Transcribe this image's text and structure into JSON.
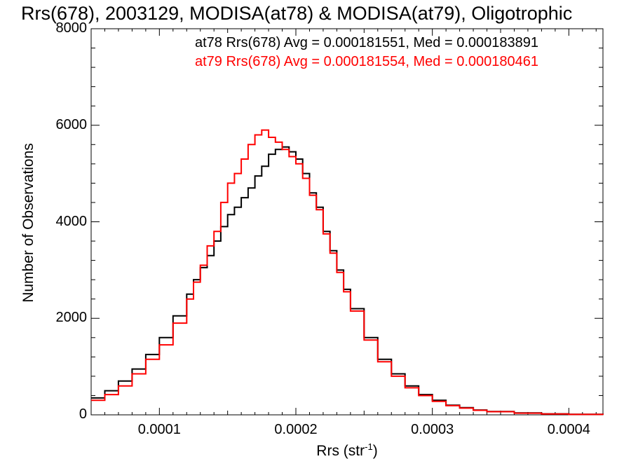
{
  "chart_data": {
    "type": "line",
    "title": "Rrs(678), 2003129, MODISA(at78) & MODISA(at79), Oligotrophic",
    "xlabel": "Rrs (str",
    "xlabel_sup": "-1",
    "xlabel_close": ")",
    "ylabel": "Number of Observations",
    "xlim": [
      5e-05,
      0.000425
    ],
    "ylim": [
      0,
      8000
    ],
    "x_ticks": [
      "0.0001",
      "0.0002",
      "0.0003",
      "0.0004"
    ],
    "y_ticks": [
      "0",
      "2000",
      "4000",
      "6000",
      "8000"
    ],
    "annotations": [
      {
        "text": "at78 Rrs(678) Avg = 0.000181551, Med = 0.000183891",
        "color": "#000000"
      },
      {
        "text": "at79 Rrs(678) Avg = 0.000181554, Med = 0.000180461",
        "color": "#ff0000"
      }
    ],
    "series": [
      {
        "name": "at78",
        "color": "#000000",
        "x": [
          5e-05,
          6e-05,
          7e-05,
          8e-05,
          9e-05,
          0.0001,
          0.00011,
          0.00012,
          0.000125,
          0.00013,
          0.000135,
          0.00014,
          0.000145,
          0.00015,
          0.000155,
          0.00016,
          0.000165,
          0.00017,
          0.000175,
          0.00018,
          0.000185,
          0.00019,
          0.000195,
          0.0002,
          0.000205,
          0.00021,
          0.000215,
          0.00022,
          0.000225,
          0.00023,
          0.000235,
          0.00024,
          0.00025,
          0.00026,
          0.00027,
          0.00028,
          0.00029,
          0.0003,
          0.00031,
          0.00032,
          0.00033,
          0.00034,
          0.00036,
          0.00038,
          0.0004,
          0.000425
        ],
        "y": [
          350,
          500,
          700,
          950,
          1250,
          1600,
          2050,
          2500,
          2800,
          3050,
          3300,
          3600,
          3900,
          4150,
          4300,
          4500,
          4700,
          4950,
          5150,
          5400,
          5500,
          5550,
          5450,
          5300,
          5000,
          4600,
          4300,
          3800,
          3400,
          3000,
          2600,
          2200,
          1600,
          1150,
          850,
          600,
          420,
          300,
          200,
          150,
          100,
          70,
          40,
          20,
          10,
          0
        ]
      },
      {
        "name": "at79",
        "color": "#ff0000",
        "x": [
          5e-05,
          6e-05,
          7e-05,
          8e-05,
          9e-05,
          0.0001,
          0.00011,
          0.00012,
          0.000125,
          0.00013,
          0.000135,
          0.00014,
          0.000145,
          0.00015,
          0.000155,
          0.00016,
          0.000165,
          0.00017,
          0.000175,
          0.00018,
          0.000185,
          0.00019,
          0.000195,
          0.0002,
          0.000205,
          0.00021,
          0.000215,
          0.00022,
          0.000225,
          0.00023,
          0.000235,
          0.00024,
          0.00025,
          0.00026,
          0.00027,
          0.00028,
          0.00029,
          0.0003,
          0.00031,
          0.00032,
          0.00033,
          0.00034,
          0.00036,
          0.00038,
          0.0004,
          0.000425
        ],
        "y": [
          300,
          420,
          600,
          850,
          1150,
          1450,
          1900,
          2400,
          2750,
          3100,
          3500,
          3800,
          4400,
          4800,
          5000,
          5300,
          5600,
          5800,
          5900,
          5750,
          5650,
          5500,
          5350,
          5200,
          4900,
          4550,
          4250,
          3750,
          3350,
          2950,
          2550,
          2150,
          1550,
          1100,
          800,
          560,
          400,
          280,
          190,
          140,
          95,
          65,
          35,
          18,
          8,
          0
        ]
      }
    ]
  }
}
